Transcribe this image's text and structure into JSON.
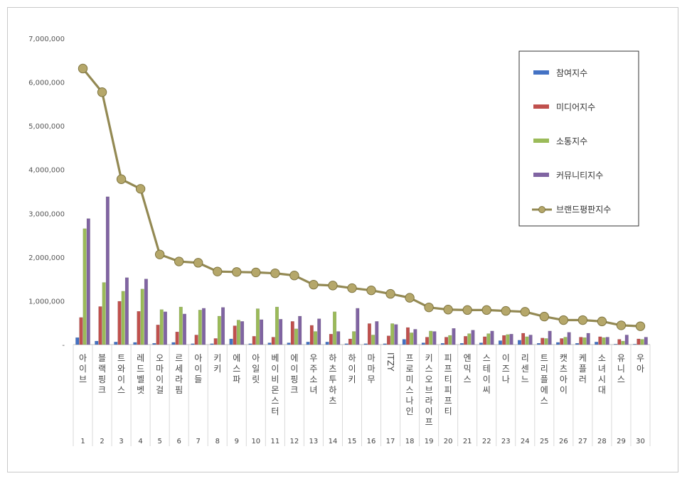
{
  "chart_data": {
    "type": "bar",
    "ylim": [
      0,
      7000000
    ],
    "yticks": [
      "-",
      "1,000,000",
      "2,000,000",
      "3,000,000",
      "4,000,000",
      "5,000,000",
      "6,000,000",
      "7,000,000"
    ],
    "ytick_values": [
      0,
      1000000,
      2000000,
      3000000,
      4000000,
      5000000,
      6000000,
      7000000
    ],
    "grid": false,
    "legend_position": "top-right",
    "categories": [
      "아이브",
      "블랙핑크",
      "트와이스",
      "레드벨벳",
      "오마이걸",
      "르세라핌",
      "아이들",
      "키키",
      "에스파",
      "아일릿",
      "베이비몬스터",
      "에이핑크",
      "우주소녀",
      "하츠투하츠",
      "하이키",
      "마마무",
      "ITZY",
      "프로미스나인",
      "키스오브라이프",
      "피프티피프티",
      "엔믹스",
      "스테이씨",
      "이즈나",
      "리센느",
      "트리플에스",
      "캣츠아이",
      "케플러",
      "소녀시대",
      "유니스",
      "우아"
    ],
    "ranks": [
      "1",
      "2",
      "3",
      "4",
      "5",
      "6",
      "7",
      "8",
      "9",
      "10",
      "11",
      "12",
      "13",
      "14",
      "15",
      "16",
      "17",
      "18",
      "19",
      "20",
      "21",
      "22",
      "23",
      "24",
      "25",
      "26",
      "27",
      "28",
      "29",
      "30"
    ],
    "series": [
      {
        "name": "참여지수",
        "color": "#4472c4",
        "values": [
          160000,
          80000,
          60000,
          50000,
          30000,
          50000,
          20000,
          20000,
          130000,
          20000,
          40000,
          40000,
          60000,
          60000,
          20000,
          20000,
          20000,
          120000,
          40000,
          30000,
          30000,
          40000,
          90000,
          100000,
          30000,
          50000,
          30000,
          60000,
          10000,
          10000
        ]
      },
      {
        "name": "미디어지수",
        "color": "#c0504d",
        "values": [
          620000,
          870000,
          990000,
          760000,
          450000,
          290000,
          220000,
          140000,
          430000,
          190000,
          170000,
          530000,
          440000,
          240000,
          130000,
          480000,
          200000,
          390000,
          170000,
          170000,
          190000,
          180000,
          210000,
          260000,
          150000,
          140000,
          170000,
          180000,
          120000,
          130000
        ]
      },
      {
        "name": "소통지수",
        "color": "#9bbb59",
        "values": [
          2650000,
          1420000,
          1220000,
          1270000,
          800000,
          860000,
          790000,
          650000,
          560000,
          820000,
          860000,
          360000,
          300000,
          750000,
          300000,
          220000,
          480000,
          270000,
          310000,
          210000,
          250000,
          250000,
          230000,
          180000,
          140000,
          170000,
          160000,
          160000,
          80000,
          120000
        ]
      },
      {
        "name": "커뮤니티지수",
        "color": "#8064a2",
        "values": [
          2880000,
          3380000,
          1530000,
          1500000,
          750000,
          700000,
          830000,
          850000,
          530000,
          570000,
          580000,
          650000,
          590000,
          300000,
          830000,
          530000,
          460000,
          350000,
          300000,
          370000,
          330000,
          310000,
          240000,
          220000,
          310000,
          280000,
          260000,
          170000,
          220000,
          170000
        ]
      },
      {
        "name": "브랜드평판지수",
        "color": "#938953",
        "values": [
          6310000,
          5770000,
          3780000,
          3560000,
          2060000,
          1900000,
          1870000,
          1670000,
          1660000,
          1650000,
          1630000,
          1580000,
          1370000,
          1350000,
          1290000,
          1240000,
          1160000,
          1070000,
          850000,
          800000,
          790000,
          790000,
          770000,
          750000,
          640000,
          560000,
          560000,
          530000,
          440000,
          420000
        ]
      }
    ]
  }
}
